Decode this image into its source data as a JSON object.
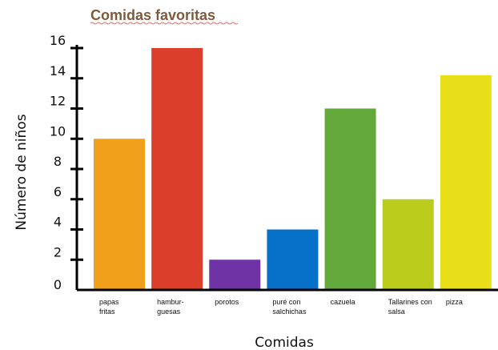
{
  "chart_data": {
    "type": "bar",
    "title": "Comidas favoritas",
    "xlabel": "Comidas",
    "ylabel": "Número de niños",
    "ylim": [
      0,
      16
    ],
    "yticks": [
      0,
      2,
      4,
      6,
      8,
      10,
      12,
      14,
      16
    ],
    "grid": false,
    "legend": "none",
    "categories": [
      [
        "papas",
        "fritas"
      ],
      [
        "hambur-",
        "guesas"
      ],
      [
        "porotos"
      ],
      [
        "puré con",
        "salchichas"
      ],
      [
        "cazuela"
      ],
      [
        "Tallarines con",
        "salsa"
      ],
      [
        "pizza"
      ]
    ],
    "values": [
      10,
      16,
      2,
      4,
      12,
      6,
      14.2
    ],
    "colors": [
      "#f0a01a",
      "#db3e2b",
      "#7033a5",
      "#0770c8",
      "#62a83b",
      "#bccc1c",
      "#e9df18"
    ]
  }
}
